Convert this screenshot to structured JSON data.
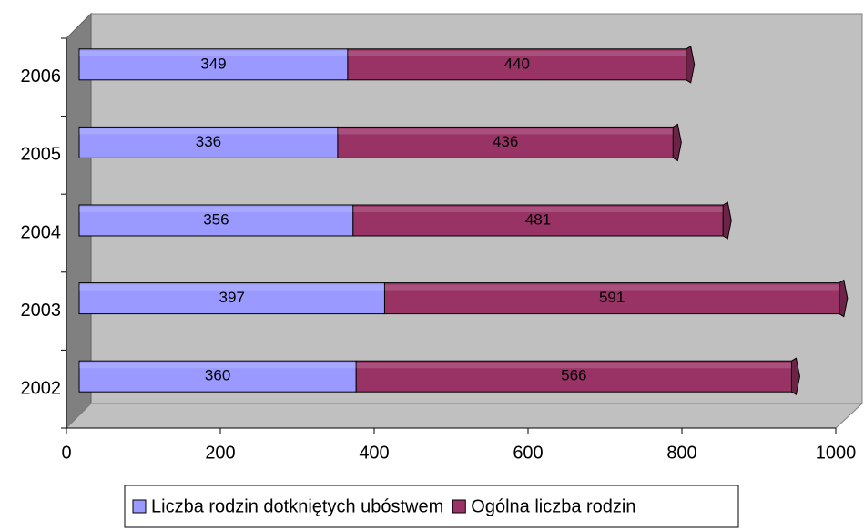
{
  "chart_data": {
    "type": "stacked-bar-horizontal",
    "categories": [
      "2002",
      "2003",
      "2004",
      "2005",
      "2006"
    ],
    "series": [
      {
        "name": "Liczba rodzin dotkniętych ubóstwem",
        "color": "#9999ff",
        "values": [
          360,
          397,
          356,
          336,
          349
        ]
      },
      {
        "name": "Ogólna liczba rodzin",
        "color": "#993366",
        "values": [
          566,
          591,
          481,
          436,
          440
        ]
      }
    ],
    "xlim": [
      0,
      1000
    ],
    "xticks": [
      0,
      200,
      400,
      600,
      800,
      1000
    ],
    "legend": "bottom"
  }
}
